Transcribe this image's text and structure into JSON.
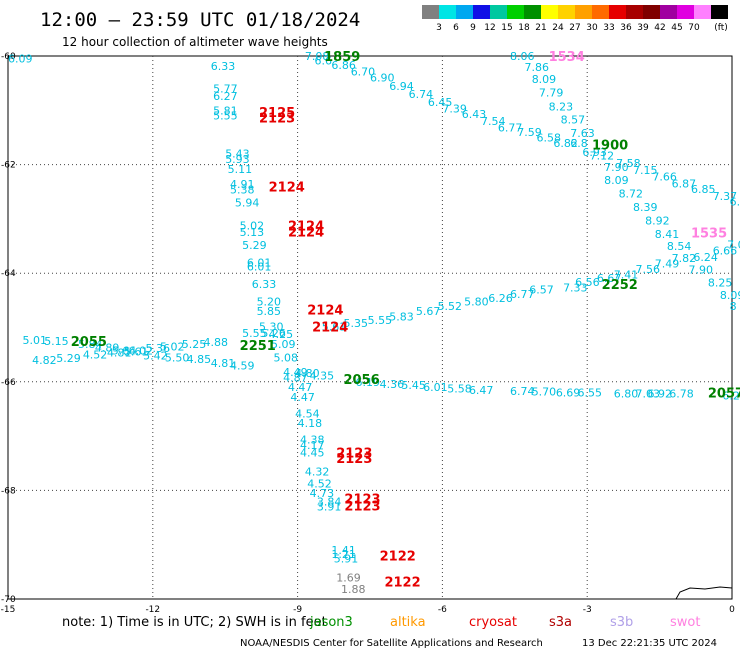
{
  "header": {
    "title": "12:00 – 23:59 UTC 01/18/2024",
    "subtitle": "12 hour collection of altimeter wave heights"
  },
  "colorbar": {
    "labels": [
      "3",
      "6",
      "9",
      "12",
      "15",
      "18",
      "21",
      "24",
      "27",
      "30",
      "33",
      "36",
      "39",
      "42",
      "45",
      "70"
    ],
    "unit": "(ft)",
    "colors": [
      "#808080",
      "#00e5e5",
      "#00a8f0",
      "#1010e6",
      "#00c8a0",
      "#00d000",
      "#009000",
      "#ffff00",
      "#ffd200",
      "#ffa000",
      "#ff6a00",
      "#e60000",
      "#a80000",
      "#800000",
      "#a000a0",
      "#e000e0",
      "#ff80ff",
      "#000000"
    ]
  },
  "footer": {
    "note": "note:  1) Time is in UTC; 2) SWH is in feet",
    "satellites": [
      {
        "name": "jason3",
        "color": "#009000"
      },
      {
        "name": "altika",
        "color": "#ff9900"
      },
      {
        "name": "cryosat",
        "color": "#e60000"
      },
      {
        "name": "s3a",
        "color": "#b00000"
      },
      {
        "name": "s3b",
        "color": "#b0a0e8"
      },
      {
        "name": "swot",
        "color": "#ff80e0"
      }
    ],
    "credit": "NOAA/NESDIS Center for Satellite Applications and Research",
    "timestamp": "13 Dec 22:21:35 UTC 2024"
  },
  "chart_data": {
    "type": "scatter",
    "xlim": [
      -15,
      0
    ],
    "ylim": [
      -70,
      -60
    ],
    "grid": true,
    "x_ticks": [
      "-15",
      "-12",
      "-9",
      "-6",
      "-3",
      "0"
    ],
    "y_ticks": [
      "-60",
      "-62",
      "-64",
      "-66",
      "-68",
      "-70"
    ],
    "colors": {
      "wave": "#00bfdf",
      "wave_low": "#808080",
      "jason3": "#008000",
      "cryosat": "#e60000",
      "swot": "#ff80e0"
    },
    "passes": [
      {
        "label": "1859",
        "sat": "jason3",
        "x": -8.45,
        "y": -60.0
      },
      {
        "label": "1534",
        "sat": "swot",
        "x": -3.8,
        "y": -60.0
      },
      {
        "label": "2125",
        "sat": "cryosat",
        "x": -9.8,
        "y": -61.03
      },
      {
        "label": "2123",
        "sat": "cryosat",
        "x": -9.8,
        "y": -61.13
      },
      {
        "label": "1900",
        "sat": "jason3",
        "x": -2.9,
        "y": -61.63
      },
      {
        "label": "2124",
        "sat": "cryosat",
        "x": -9.6,
        "y": -62.4
      },
      {
        "label": "2124",
        "sat": "cryosat",
        "x": -9.2,
        "y": -63.12
      },
      {
        "label": "2124",
        "sat": "cryosat",
        "x": -9.2,
        "y": -63.23
      },
      {
        "label": "1535",
        "sat": "swot",
        "x": -0.85,
        "y": -63.25
      },
      {
        "label": "2252",
        "sat": "jason3",
        "x": -2.7,
        "y": -64.2
      },
      {
        "label": "2124",
        "sat": "cryosat",
        "x": -8.8,
        "y": -64.67
      },
      {
        "label": "2124",
        "sat": "cryosat",
        "x": -8.7,
        "y": -64.98
      },
      {
        "label": "2055",
        "sat": "jason3",
        "x": -13.7,
        "y": -65.25
      },
      {
        "label": "2251",
        "sat": "jason3",
        "x": -10.2,
        "y": -65.32
      },
      {
        "label": "2056",
        "sat": "jason3",
        "x": -8.05,
        "y": -65.95
      },
      {
        "label": "2057",
        "sat": "jason3",
        "x": -0.5,
        "y": -66.2
      },
      {
        "label": "2123",
        "sat": "cryosat",
        "x": -8.2,
        "y": -67.3
      },
      {
        "label": "2123",
        "sat": "cryosat",
        "x": -8.2,
        "y": -67.4
      },
      {
        "label": "2123",
        "sat": "cryosat",
        "x": -8.03,
        "y": -68.15
      },
      {
        "label": "2123",
        "sat": "cryosat",
        "x": -8.03,
        "y": -68.28
      },
      {
        "label": "2122",
        "sat": "cryosat",
        "x": -7.3,
        "y": -69.2
      },
      {
        "label": "2122",
        "sat": "cryosat",
        "x": -7.2,
        "y": -69.68
      }
    ],
    "swh_labels": [
      {
        "v": "7.08",
        "x": -8.85,
        "y": -60.0
      },
      {
        "v": "6.6",
        "x": -8.65,
        "y": -60.08
      },
      {
        "v": "6.86",
        "x": -8.3,
        "y": -60.17
      },
      {
        "v": "6.70",
        "x": -7.9,
        "y": -60.29
      },
      {
        "v": "6.90",
        "x": -7.5,
        "y": -60.4
      },
      {
        "v": "6.94",
        "x": -7.1,
        "y": -60.55
      },
      {
        "v": "6.74",
        "x": -6.7,
        "y": -60.7
      },
      {
        "v": "6.45",
        "x": -6.3,
        "y": -60.85
      },
      {
        "v": "7.39",
        "x": -6.0,
        "y": -60.97
      },
      {
        "v": "6.43",
        "x": -5.6,
        "y": -61.07
      },
      {
        "v": "7.54",
        "x": -5.2,
        "y": -61.2
      },
      {
        "v": "6.77",
        "x": -4.85,
        "y": -61.32
      },
      {
        "v": "7.59",
        "x": -4.45,
        "y": -61.4
      },
      {
        "v": "6.58",
        "x": -4.05,
        "y": -61.5
      },
      {
        "v": "6.82",
        "x": -3.7,
        "y": -61.6
      },
      {
        "v": "6.8",
        "x": -3.35,
        "y": -61.6
      },
      {
        "v": "6.93",
        "x": -3.1,
        "y": -61.77
      },
      {
        "v": "7.12",
        "x": -2.95,
        "y": -61.83
      },
      {
        "v": "8.06",
        "x": -4.6,
        "y": -60.0
      },
      {
        "v": "7.86",
        "x": -4.3,
        "y": -60.2
      },
      {
        "v": "8.09",
        "x": -4.15,
        "y": -60.42
      },
      {
        "v": "7.79",
        "x": -4.0,
        "y": -60.67
      },
      {
        "v": "8.23",
        "x": -3.8,
        "y": -60.93
      },
      {
        "v": "8.57",
        "x": -3.55,
        "y": -61.17
      },
      {
        "v": "7.63",
        "x": -3.35,
        "y": -61.42
      },
      {
        "v": "7.90",
        "x": -2.65,
        "y": -62.04
      },
      {
        "v": "7.58",
        "x": -2.4,
        "y": -61.97
      },
      {
        "v": "7.15",
        "x": -2.05,
        "y": -62.1
      },
      {
        "v": "7.66",
        "x": -1.65,
        "y": -62.22
      },
      {
        "v": "6.87",
        "x": -1.25,
        "y": -62.35
      },
      {
        "v": "6.85",
        "x": -0.85,
        "y": -62.45
      },
      {
        "v": "7.37",
        "x": -0.4,
        "y": -62.58
      },
      {
        "v": "6.15",
        "x": -0.05,
        "y": -62.68
      },
      {
        "v": "8.09",
        "x": -2.65,
        "y": -62.28
      },
      {
        "v": "8.72",
        "x": -2.35,
        "y": -62.53
      },
      {
        "v": "8.39",
        "x": -2.05,
        "y": -62.78
      },
      {
        "v": "8.92",
        "x": -1.8,
        "y": -63.03
      },
      {
        "v": "8.41",
        "x": -1.6,
        "y": -63.28
      },
      {
        "v": "8.54",
        "x": -1.35,
        "y": -63.5
      },
      {
        "v": "7.82",
        "x": -1.25,
        "y": -63.72
      },
      {
        "v": "7.90",
        "x": -0.9,
        "y": -63.93
      },
      {
        "v": "8.25",
        "x": -0.5,
        "y": -64.17
      },
      {
        "v": "8.09",
        "x": -0.25,
        "y": -64.4
      },
      {
        "v": "8",
        "x": -0.05,
        "y": -64.6
      },
      {
        "v": "6.24",
        "x": -0.8,
        "y": -63.7
      },
      {
        "v": "6.66",
        "x": -0.4,
        "y": -63.58
      },
      {
        "v": "7.03",
        "x": -0.1,
        "y": -63.47
      },
      {
        "v": "7.49",
        "x": -1.6,
        "y": -63.82
      },
      {
        "v": "7.56",
        "x": -2.0,
        "y": -63.92
      },
      {
        "v": "7.41",
        "x": -2.45,
        "y": -64.02
      },
      {
        "v": "6.67",
        "x": -2.8,
        "y": -64.09
      },
      {
        "v": "6.56",
        "x": -3.25,
        "y": -64.16
      },
      {
        "v": "7.33",
        "x": -3.5,
        "y": -64.26
      },
      {
        "v": "6.57",
        "x": -4.2,
        "y": -64.3
      },
      {
        "v": "6.77",
        "x": -4.6,
        "y": -64.38
      },
      {
        "v": "6.26",
        "x": -5.05,
        "y": -64.46
      },
      {
        "v": "5.80",
        "x": -5.55,
        "y": -64.52
      },
      {
        "v": "5.52",
        "x": -6.1,
        "y": -64.6
      },
      {
        "v": "5.67",
        "x": -6.55,
        "y": -64.7
      },
      {
        "v": "5.83",
        "x": -7.1,
        "y": -64.8
      },
      {
        "v": "5.55",
        "x": -7.55,
        "y": -64.86
      },
      {
        "v": "5.35",
        "x": -8.05,
        "y": -64.92
      },
      {
        "v": "5.61",
        "x": -8.5,
        "y": -64.98
      },
      {
        "v": "6.09",
        "x": -15.0,
        "y": -60.05
      },
      {
        "v": "6.33",
        "x": -10.8,
        "y": -60.18
      },
      {
        "v": "5.77",
        "x": -10.75,
        "y": -60.6
      },
      {
        "v": "6.27",
        "x": -10.75,
        "y": -60.74
      },
      {
        "v": "5.81",
        "x": -10.75,
        "y": -61.0
      },
      {
        "v": "5.55",
        "x": -10.75,
        "y": -61.1
      },
      {
        "v": "5.43",
        "x": -10.5,
        "y": -61.8
      },
      {
        "v": "5.93",
        "x": -10.5,
        "y": -61.9
      },
      {
        "v": "5.11",
        "x": -10.45,
        "y": -62.08
      },
      {
        "v": "4.91",
        "x": -10.4,
        "y": -62.36
      },
      {
        "v": "5.38",
        "x": -10.4,
        "y": -62.46
      },
      {
        "v": "5.94",
        "x": -10.3,
        "y": -62.7
      },
      {
        "v": "5.02",
        "x": -10.2,
        "y": -63.12
      },
      {
        "v": "5.13",
        "x": -10.2,
        "y": -63.24
      },
      {
        "v": "5.29",
        "x": -10.15,
        "y": -63.48
      },
      {
        "v": "6.01",
        "x": -10.05,
        "y": -63.8
      },
      {
        "v": "6.01",
        "x": -10.05,
        "y": -63.88
      },
      {
        "v": "6.33",
        "x": -9.95,
        "y": -64.2
      },
      {
        "v": "5.20",
        "x": -9.85,
        "y": -64.52
      },
      {
        "v": "5.85",
        "x": -9.85,
        "y": -64.7
      },
      {
        "v": "5.30",
        "x": -9.8,
        "y": -64.98
      },
      {
        "v": "4.25",
        "x": -9.6,
        "y": -65.12
      },
      {
        "v": "5.09",
        "x": -9.55,
        "y": -65.3
      },
      {
        "v": "5.08",
        "x": -9.5,
        "y": -65.55
      },
      {
        "v": "4.49",
        "x": -9.3,
        "y": -65.82
      },
      {
        "v": "4.87",
        "x": -9.3,
        "y": -65.92
      },
      {
        "v": "4.47",
        "x": -9.2,
        "y": -66.1
      },
      {
        "v": "4.47",
        "x": -9.15,
        "y": -66.28
      },
      {
        "v": "4.54",
        "x": -9.05,
        "y": -66.58
      },
      {
        "v": "4.18",
        "x": -9.0,
        "y": -66.76
      },
      {
        "v": "4.38",
        "x": -8.95,
        "y": -67.06
      },
      {
        "v": "4.17",
        "x": -8.95,
        "y": -67.16
      },
      {
        "v": "4.45",
        "x": -8.95,
        "y": -67.3
      },
      {
        "v": "4.32",
        "x": -8.85,
        "y": -67.65
      },
      {
        "v": "4.52",
        "x": -8.8,
        "y": -67.87
      },
      {
        "v": "4.73",
        "x": -8.75,
        "y": -68.05
      },
      {
        "v": "3.84",
        "x": -8.6,
        "y": -68.2
      },
      {
        "v": "3.91",
        "x": -8.6,
        "y": -68.3
      },
      {
        "v": "1.41",
        "x": -8.3,
        "y": -69.1
      },
      {
        "v": "1.21",
        "x": -8.3,
        "y": -69.17
      },
      {
        "v": "5.91",
        "x": -8.25,
        "y": -69.25
      },
      {
        "v": "5.01",
        "x": -14.7,
        "y": -65.23
      },
      {
        "v": "5.15",
        "x": -14.25,
        "y": -65.25
      },
      {
        "v": "5.84",
        "x": -13.55,
        "y": -65.3
      },
      {
        "v": "4.89",
        "x": -13.2,
        "y": -65.37
      },
      {
        "v": "5.64",
        "x": -12.85,
        "y": -65.42
      },
      {
        "v": "6.02",
        "x": -12.5,
        "y": -65.42
      },
      {
        "v": "5.36",
        "x": -12.15,
        "y": -65.38
      },
      {
        "v": "5.02",
        "x": -11.85,
        "y": -65.35
      },
      {
        "v": "5.25",
        "x": -11.4,
        "y": -65.3
      },
      {
        "v": "4.88",
        "x": -10.95,
        "y": -65.27
      },
      {
        "v": "5.55",
        "x": -10.15,
        "y": -65.1
      },
      {
        "v": "5.26",
        "x": -9.75,
        "y": -65.1
      },
      {
        "v": "4.82",
        "x": -14.5,
        "y": -65.6
      },
      {
        "v": "5.29",
        "x": -14.0,
        "y": -65.56
      },
      {
        "v": "4.52",
        "x": -13.45,
        "y": -65.5
      },
      {
        "v": "4.81",
        "x": -12.95,
        "y": -65.46
      },
      {
        "v": "5.61",
        "x": -12.6,
        "y": -65.44
      },
      {
        "v": "5.42",
        "x": -12.2,
        "y": -65.52
      },
      {
        "v": "5.50",
        "x": -11.75,
        "y": -65.55
      },
      {
        "v": "4.85",
        "x": -11.3,
        "y": -65.58
      },
      {
        "v": "4.81",
        "x": -10.8,
        "y": -65.65
      },
      {
        "v": "4.59",
        "x": -10.4,
        "y": -65.7
      },
      {
        "v": "4.80",
        "x": -9.05,
        "y": -65.84
      },
      {
        "v": "4.35",
        "x": -8.75,
        "y": -65.88
      },
      {
        "v": "6.19",
        "x": -7.8,
        "y": -66.0
      },
      {
        "v": "4.36",
        "x": -7.3,
        "y": -66.04
      },
      {
        "v": "5.45",
        "x": -6.85,
        "y": -66.06
      },
      {
        "v": "6.01",
        "x": -6.4,
        "y": -66.1
      },
      {
        "v": "5.58",
        "x": -5.9,
        "y": -66.12
      },
      {
        "v": "6.47",
        "x": -5.45,
        "y": -66.15
      },
      {
        "v": "6.74",
        "x": -4.6,
        "y": -66.17
      },
      {
        "v": "5.70",
        "x": -4.15,
        "y": -66.18
      },
      {
        "v": "6.69",
        "x": -3.65,
        "y": -66.2
      },
      {
        "v": "6.55",
        "x": -3.2,
        "y": -66.2
      },
      {
        "v": "6.80",
        "x": -2.45,
        "y": -66.22
      },
      {
        "v": "7.03",
        "x": -2.0,
        "y": -66.22
      },
      {
        "v": "6.92",
        "x": -1.75,
        "y": -66.22
      },
      {
        "v": "6.78",
        "x": -1.3,
        "y": -66.22
      },
      {
        "v": "6.23",
        "x": -0.2,
        "y": -66.25
      }
    ],
    "swh_low": [
      {
        "v": "1.69",
        "x": -8.2,
        "y": -69.6
      },
      {
        "v": "1.88",
        "x": -8.1,
        "y": -69.82
      }
    ]
  }
}
